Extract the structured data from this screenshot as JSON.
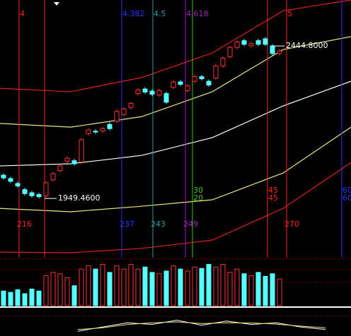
{
  "chart_data": {
    "type": "candlestick",
    "open": [
      2025,
      2014,
      1998,
      1978,
      1968,
      1962,
      1958,
      2010,
      2040,
      2070,
      2072,
      2068,
      2160,
      2168,
      2168,
      2190,
      2200,
      2222,
      2245,
      2290,
      2305,
      2298,
      2285,
      2290,
      2310,
      2328,
      2300,
      2330,
      2345,
      2330,
      2340,
      2380,
      2410,
      2440,
      2462,
      2445,
      2462,
      2468,
      2445,
      2420
    ],
    "close": [
      2016,
      2005,
      1990,
      1965,
      1958,
      1955,
      2000,
      2030,
      2055,
      2080,
      2062,
      2140,
      2172,
      2165,
      2176,
      2176,
      2232,
      2240,
      2258,
      2302,
      2295,
      2288,
      2300,
      2262,
      2328,
      2320,
      2315,
      2345,
      2338,
      2318,
      2380,
      2405,
      2440,
      2458,
      2450,
      2452,
      2450,
      2450,
      2420,
      2428
    ],
    "high": [
      2031,
      2020,
      2004,
      1984,
      1974,
      1968,
      2006,
      2036,
      2061,
      2086,
      2078,
      2146,
      2178,
      2174,
      2182,
      2196,
      2238,
      2246,
      2264,
      2308,
      2311,
      2304,
      2306,
      2296,
      2334,
      2334,
      2321,
      2351,
      2351,
      2336,
      2386,
      2411,
      2446,
      2464,
      2468,
      2458,
      2468,
      2474,
      2451,
      2434
    ],
    "low": [
      2010,
      1999,
      1984,
      1959,
      1952,
      1949,
      1952,
      2004,
      2034,
      2064,
      2056,
      2062,
      2154,
      2159,
      2162,
      2170,
      2194,
      2216,
      2239,
      2284,
      2289,
      2282,
      2279,
      2256,
      2304,
      2314,
      2294,
      2324,
      2332,
      2312,
      2334,
      2374,
      2404,
      2434,
      2444,
      2439,
      2444,
      2444,
      2414,
      2414
    ],
    "volume": [
      22,
      20,
      24,
      18,
      25,
      22,
      45,
      50,
      48,
      42,
      30,
      55,
      60,
      55,
      62,
      50,
      60,
      55,
      62,
      55,
      58,
      50,
      48,
      52,
      60,
      55,
      52,
      58,
      56,
      62,
      58,
      62,
      50,
      55,
      48,
      45,
      50,
      44,
      48,
      40
    ],
    "up_color": "#ff3232",
    "down_color": "#54ffff",
    "ylim": [
      1757,
      2594
    ],
    "volume_ylim": [
      0,
      70
    ],
    "bands": {
      "x": [
        -0.5,
        9.5,
        19.5,
        29.5,
        39.5,
        49.1
      ],
      "series": [
        {
          "color": "#e02020",
          "values": [
            2307,
            2296,
            2342,
            2422,
            2559,
            2594
          ]
        },
        {
          "color": "#e8e880",
          "values": [
            2193,
            2181,
            2215,
            2296,
            2433,
            2475
          ]
        },
        {
          "color": "#ffffff",
          "values": [
            2055,
            2062,
            2089,
            2147,
            2250,
            2330
          ]
        },
        {
          "color": "#e8e880",
          "values": [
            1917,
            1906,
            1924,
            1945,
            2032,
            2181
          ]
        },
        {
          "color": "#e02020",
          "values": [
            1775,
            1773,
            1787,
            1814,
            1917,
            2066
          ]
        }
      ]
    },
    "annotations": [
      {
        "value": 2444.8,
        "label": "2444.8000"
      },
      {
        "value": 1949.46,
        "label": "1949.4600"
      }
    ],
    "markers": [
      {
        "color": "#ff2020",
        "top": "4",
        "bottom": "216"
      },
      {
        "color": "#ff2020"
      },
      {
        "color": "#3030ff",
        "top": "4.382",
        "bottom": "237"
      },
      {
        "color": "#20a0a0",
        "top": "4.5",
        "bottom": "243"
      },
      {
        "color": "#a020c0",
        "top": "4.618",
        "bottom": "249"
      },
      {
        "color": "#40c020",
        "mid": [
          "30",
          "20"
        ]
      },
      {
        "color": "#ff2020",
        "mid": [
          "45",
          "45"
        ]
      },
      {
        "color": "#ff2020",
        "top": "5",
        "bottom": "270"
      },
      {
        "color": "#3030ff",
        "mid": [
          "60",
          "60"
        ]
      }
    ],
    "indicator": {
      "ylim": [
        0,
        100
      ],
      "series": [
        {
          "color": "#ffffff",
          "values": [
            20,
            45,
            70,
            60,
            85,
            55,
            80,
            60,
            70,
            45,
            30
          ]
        },
        {
          "color": "#e8e880",
          "values": [
            30,
            40,
            60,
            70,
            75,
            65,
            70,
            68,
            62,
            50,
            40
          ]
        }
      ]
    }
  }
}
